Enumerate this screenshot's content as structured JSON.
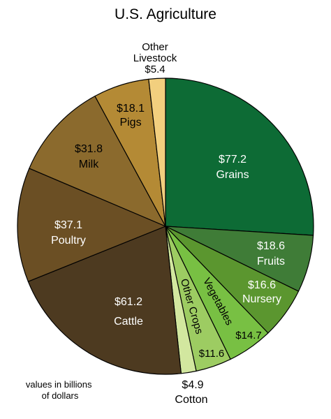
{
  "chart_data": {
    "type": "pie",
    "title": "U.S. Agriculture",
    "note_lines": [
      "values in billions",
      "of dollars"
    ],
    "start": "top, clockwise",
    "slices": [
      {
        "label": "Grains",
        "value": 77.2,
        "value_text": "$77.2",
        "color": "#0d6b35",
        "text_color": "#ffffff"
      },
      {
        "label": "Fruits",
        "value": 18.6,
        "value_text": "$18.6",
        "color": "#3f7c37",
        "text_color": "#ffffff"
      },
      {
        "label": "Nursery",
        "value": 16.6,
        "value_text": "$16.6",
        "color": "#5b962f",
        "text_color": "#ffffff"
      },
      {
        "label": "Vegetables",
        "value": 14.7,
        "value_text": "$14.7",
        "color": "#78c043",
        "text_color": "#000000"
      },
      {
        "label": "Other Crops",
        "value": 11.6,
        "value_text": "$11.6",
        "color": "#9dcc62",
        "text_color": "#000000"
      },
      {
        "label": "Cotton",
        "value": 4.9,
        "value_text": "$4.9",
        "color": "#d2e79f",
        "text_color": "#000000"
      },
      {
        "label": "Cattle",
        "value": 61.2,
        "value_text": "$61.2",
        "color": "#4d3a20",
        "text_color": "#ffffff"
      },
      {
        "label": "Poultry",
        "value": 37.1,
        "value_text": "$37.1",
        "color": "#6b4f24",
        "text_color": "#ffffff"
      },
      {
        "label": "Milk",
        "value": 31.8,
        "value_text": "$31.8",
        "color": "#8b6a2d",
        "text_color": "#000000"
      },
      {
        "label": "Pigs",
        "value": 18.1,
        "value_text": "$18.1",
        "color": "#b48a35",
        "text_color": "#000000"
      },
      {
        "label": "Other Livestock",
        "value": 5.4,
        "value_text": "$5.4",
        "color": "#f2cf7e",
        "text_color": "#000000"
      }
    ]
  }
}
